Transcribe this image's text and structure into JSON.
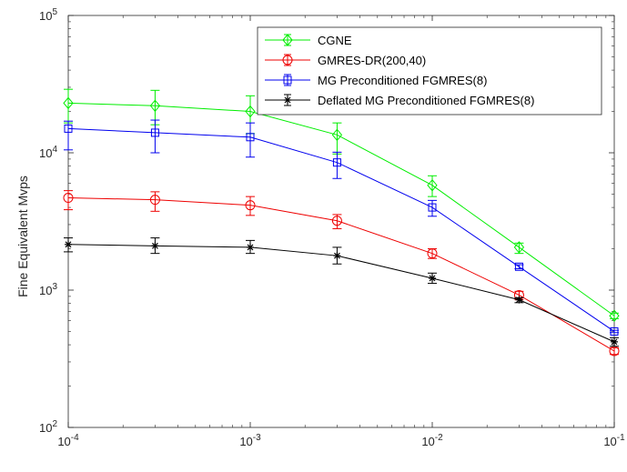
{
  "chart_data": {
    "type": "line",
    "title": "",
    "xlabel": "",
    "ylabel": "Fine Equivalent Mvps",
    "xscale": "log",
    "yscale": "log",
    "xlim": [
      0.0001,
      0.1
    ],
    "ylim": [
      100,
      100000
    ],
    "grid": false,
    "legend_position": "top-right",
    "x_ticks": [
      {
        "base": "10",
        "exp": "-4",
        "value": 0.0001
      },
      {
        "base": "10",
        "exp": "-3",
        "value": 0.001
      },
      {
        "base": "10",
        "exp": "-2",
        "value": 0.01
      },
      {
        "base": "10",
        "exp": "-1",
        "value": 0.1
      }
    ],
    "y_ticks": [
      {
        "base": "10",
        "exp": "2",
        "value": 100
      },
      {
        "base": "10",
        "exp": "3",
        "value": 1000
      },
      {
        "base": "10",
        "exp": "4",
        "value": 10000
      },
      {
        "base": "10",
        "exp": "5",
        "value": 100000
      }
    ],
    "x": [
      0.0001,
      0.0003,
      0.001,
      0.003,
      0.01,
      0.03,
      0.1
    ],
    "series": [
      {
        "name": "CGNE",
        "color": "#00ee00",
        "marker": "diamond",
        "values": [
          23000,
          22000,
          20000,
          13500,
          5800,
          2050,
          650
        ],
        "err_low": [
          16500,
          16000,
          13800,
          9800,
          4800,
          1850,
          620
        ],
        "err_high": [
          29000,
          28500,
          26000,
          16500,
          6800,
          2200,
          680
        ]
      },
      {
        "name": "GMRES-DR(200,40)",
        "color": "#ee0000",
        "marker": "circle",
        "values": [
          4700,
          4550,
          4150,
          3200,
          1850,
          920,
          360
        ],
        "err_low": [
          3850,
          3750,
          3500,
          2800,
          1700,
          850,
          340
        ],
        "err_high": [
          5300,
          5200,
          4800,
          3550,
          2000,
          980,
          380
        ]
      },
      {
        "name": "MG Preconditioned FGMRES(8)",
        "color": "#0000ee",
        "marker": "square",
        "values": [
          15000,
          14000,
          13000,
          8500,
          4000,
          1480,
          500
        ],
        "err_low": [
          10500,
          10000,
          9300,
          6500,
          3450,
          1430,
          490
        ],
        "err_high": [
          17000,
          17300,
          16500,
          10100,
          4500,
          1530,
          510
        ]
      },
      {
        "name": "Deflated MG Preconditioned FGMRES(8)",
        "color": "#000000",
        "marker": "star",
        "values": [
          2150,
          2100,
          2050,
          1780,
          1220,
          850,
          420
        ],
        "err_low": [
          1900,
          1850,
          1850,
          1550,
          1120,
          810,
          390
        ],
        "err_high": [
          2400,
          2400,
          2300,
          2050,
          1330,
          880,
          450
        ]
      }
    ]
  }
}
